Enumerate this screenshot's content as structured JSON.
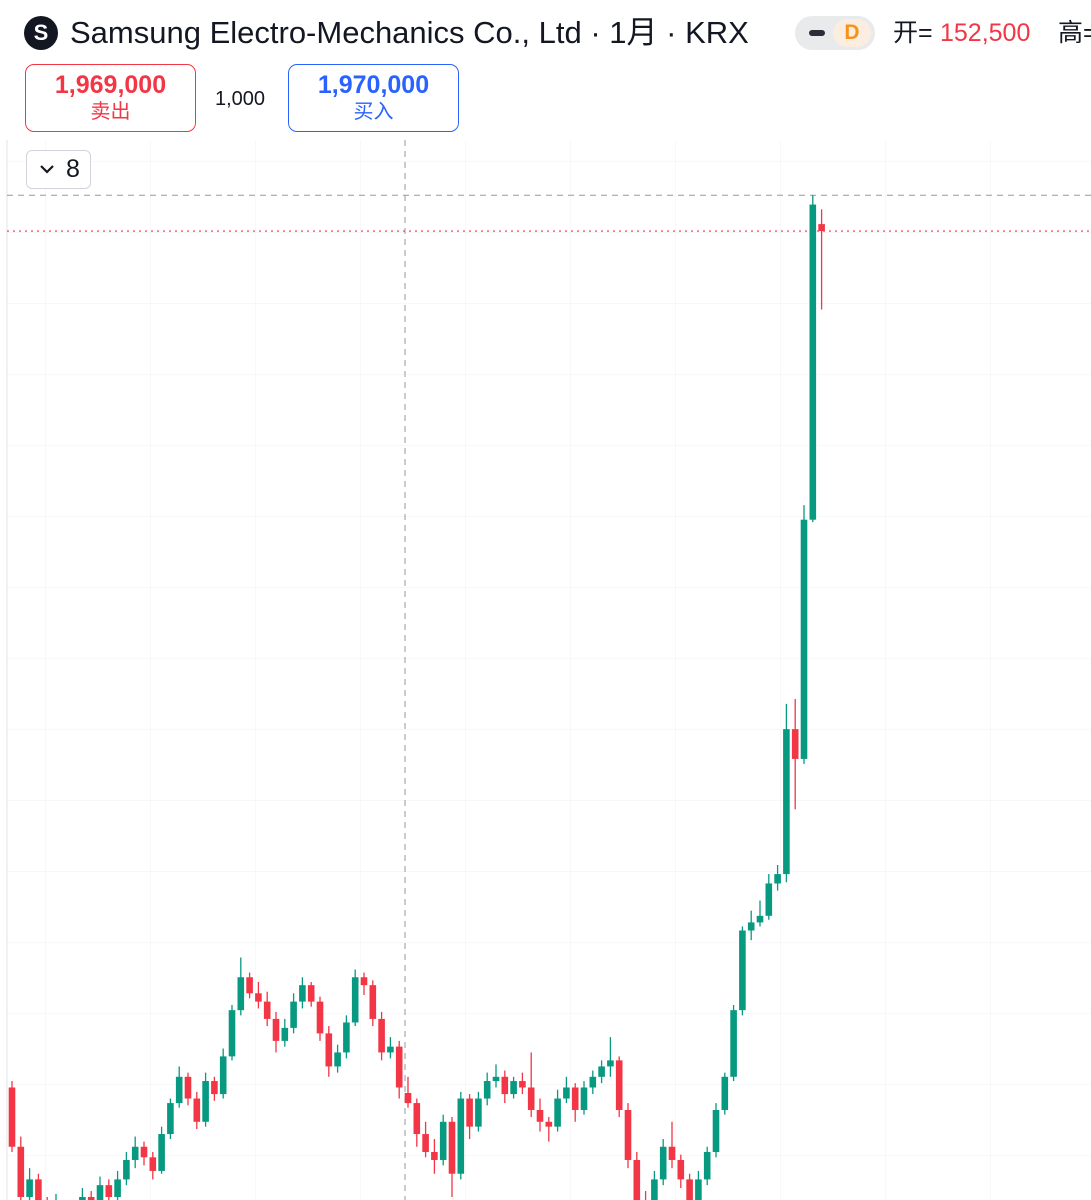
{
  "header": {
    "logo": "S",
    "title": "Samsung Electro-Mechanics Co., Ltd · 1月 · KRX",
    "badge": "D",
    "open_label": "开=",
    "open_value": "152,500",
    "high_label": "高="
  },
  "trade": {
    "sell_price": "1,969,000",
    "sell_label": "卖出",
    "spread": "1,000",
    "buy_price": "1,970,000",
    "buy_label": "买入"
  },
  "indicators_toggle": "8",
  "chart_data": {
    "type": "candlestick",
    "scale": "log",
    "ylim": [
      111000,
      2580000
    ],
    "up_color": "#089981",
    "down_color": "#f23645",
    "last_price": 1969000,
    "crosshair_price": 2190000,
    "candles": [
      [
        155000,
        158000,
        128000,
        130000
      ],
      [
        130000,
        134000,
        108000,
        112000
      ],
      [
        112000,
        122000,
        110000,
        118000
      ],
      [
        118000,
        120000,
        105000,
        108000
      ],
      [
        108000,
        112000,
        100000,
        104000
      ],
      [
        104000,
        113000,
        102000,
        110000
      ],
      [
        110000,
        111000,
        97000,
        100000
      ],
      [
        100000,
        109000,
        98000,
        106000
      ],
      [
        106000,
        115000,
        104000,
        112000
      ],
      [
        112000,
        114000,
        105000,
        108000
      ],
      [
        108000,
        119000,
        106000,
        116000
      ],
      [
        116000,
        118000,
        109000,
        112000
      ],
      [
        112000,
        121000,
        110000,
        118000
      ],
      [
        118000,
        128000,
        116000,
        125000
      ],
      [
        125000,
        134000,
        122000,
        130000
      ],
      [
        130000,
        132000,
        123000,
        126000
      ],
      [
        126000,
        128000,
        118000,
        121000
      ],
      [
        121000,
        138000,
        120000,
        135000
      ],
      [
        135000,
        150000,
        133000,
        148000
      ],
      [
        148000,
        165000,
        146000,
        160000
      ],
      [
        160000,
        162000,
        147000,
        150000
      ],
      [
        150000,
        153000,
        137000,
        140000
      ],
      [
        140000,
        162000,
        138000,
        158000
      ],
      [
        158000,
        160000,
        149000,
        152000
      ],
      [
        152000,
        174000,
        150000,
        170000
      ],
      [
        170000,
        198000,
        168000,
        195000
      ],
      [
        195000,
        228000,
        192000,
        215000
      ],
      [
        215000,
        218000,
        202000,
        205000
      ],
      [
        205000,
        212000,
        196000,
        200000
      ],
      [
        200000,
        206000,
        186000,
        190000
      ],
      [
        190000,
        194000,
        172000,
        178000
      ],
      [
        178000,
        190000,
        175000,
        185000
      ],
      [
        185000,
        205000,
        182000,
        200000
      ],
      [
        200000,
        215000,
        196000,
        210000
      ],
      [
        210000,
        212000,
        197000,
        200000
      ],
      [
        200000,
        203000,
        178000,
        182000
      ],
      [
        182000,
        186000,
        160000,
        165000
      ],
      [
        165000,
        176000,
        162000,
        172000
      ],
      [
        172000,
        192000,
        169000,
        188000
      ],
      [
        188000,
        220000,
        186000,
        215000
      ],
      [
        215000,
        218000,
        204000,
        210000
      ],
      [
        210000,
        213000,
        186000,
        190000
      ],
      [
        190000,
        194000,
        168000,
        172000
      ],
      [
        172000,
        180000,
        169000,
        175000
      ],
      [
        175000,
        178000,
        150000,
        155000
      ],
      [
        152500,
        160000,
        146000,
        148000
      ],
      [
        148000,
        150000,
        130000,
        135000
      ],
      [
        135000,
        140000,
        126000,
        128000
      ],
      [
        128000,
        133000,
        120000,
        125000
      ],
      [
        125000,
        143000,
        123000,
        140000
      ],
      [
        140000,
        142000,
        112000,
        120000
      ],
      [
        120000,
        153000,
        118000,
        150000
      ],
      [
        150000,
        152000,
        133000,
        138000
      ],
      [
        138000,
        153000,
        136000,
        150000
      ],
      [
        150000,
        162000,
        147000,
        158000
      ],
      [
        158000,
        166000,
        155000,
        160000
      ],
      [
        160000,
        163000,
        148000,
        152000
      ],
      [
        152000,
        160000,
        150000,
        158000
      ],
      [
        158000,
        162000,
        152000,
        155000
      ],
      [
        155000,
        172000,
        142000,
        145000
      ],
      [
        145000,
        150000,
        136000,
        140000
      ],
      [
        140000,
        142000,
        132000,
        138000
      ],
      [
        138000,
        154000,
        136000,
        150000
      ],
      [
        150000,
        160000,
        148000,
        155000
      ],
      [
        155000,
        157000,
        140000,
        145000
      ],
      [
        145000,
        158000,
        143000,
        155000
      ],
      [
        155000,
        163000,
        152000,
        160000
      ],
      [
        160000,
        168000,
        157000,
        165000
      ],
      [
        165000,
        180000,
        160000,
        168000
      ],
      [
        168000,
        170000,
        142000,
        145000
      ],
      [
        145000,
        148000,
        122000,
        125000
      ],
      [
        125000,
        128000,
        106000,
        110000
      ],
      [
        110000,
        114000,
        100000,
        105000
      ],
      [
        105000,
        121000,
        103000,
        118000
      ],
      [
        118000,
        133000,
        116000,
        130000
      ],
      [
        130000,
        140000,
        122000,
        125000
      ],
      [
        125000,
        127000,
        115000,
        118000
      ],
      [
        118000,
        120000,
        106000,
        110000
      ],
      [
        110000,
        121000,
        108000,
        118000
      ],
      [
        118000,
        130000,
        116000,
        128000
      ],
      [
        128000,
        148000,
        126000,
        145000
      ],
      [
        145000,
        162000,
        143000,
        160000
      ],
      [
        160000,
        198000,
        158000,
        195000
      ],
      [
        195000,
        250000,
        192000,
        247000
      ],
      [
        247000,
        262000,
        240000,
        253000
      ],
      [
        253000,
        270000,
        250000,
        258000
      ],
      [
        258000,
        292000,
        255000,
        284000
      ],
      [
        284000,
        300000,
        278000,
        292000
      ],
      [
        292000,
        484000,
        285000,
        449000
      ],
      [
        449000,
        491000,
        354000,
        411000
      ],
      [
        411000,
        873000,
        405000,
        836000
      ],
      [
        836000,
        2190000,
        830000,
        2130000
      ],
      [
        2010000,
        2100000,
        1560000,
        1969000
      ]
    ]
  }
}
